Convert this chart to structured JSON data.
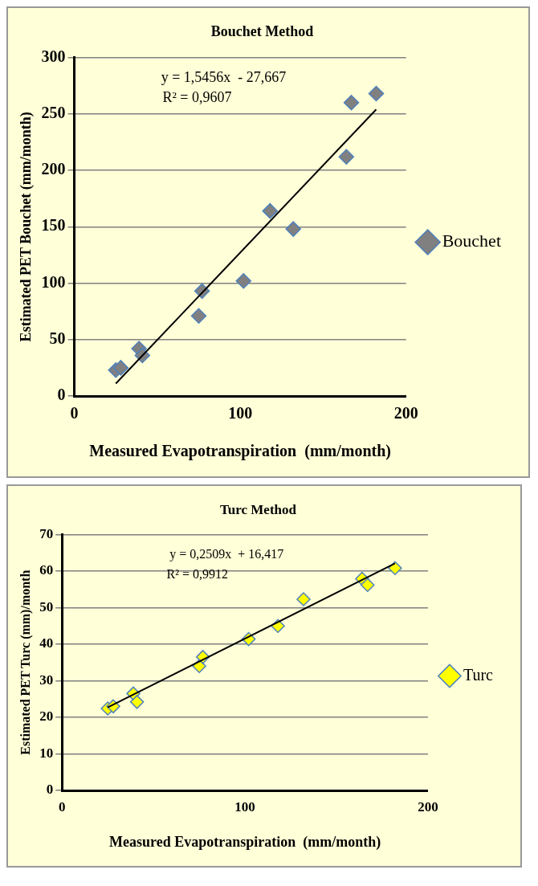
{
  "chart_data": [
    {
      "type": "scatter",
      "title": "Bouchet Method",
      "xlabel": "Measured Evapotranspiration  (mm/month)",
      "ylabel": "Estimated PET Bouchet (mm/month)",
      "xlim": [
        0,
        200
      ],
      "xticks": [
        0,
        100,
        200
      ],
      "ylim": [
        0,
        300
      ],
      "yticks": [
        0,
        50,
        100,
        150,
        200,
        250,
        300
      ],
      "grid": "y",
      "legend": "right",
      "marker": "diamond",
      "annotations": [
        "y = 1,5456x  - 27,667",
        "R² = 0,9607"
      ],
      "series": [
        {
          "name": "Bouchet",
          "color": "#808080",
          "x": [
            25,
            28,
            39,
            41,
            75,
            77,
            102,
            118,
            132,
            164,
            167,
            182
          ],
          "values": [
            23,
            25,
            42,
            36,
            71,
            93,
            102,
            164,
            148,
            212,
            260,
            268
          ]
        },
        {
          "type": "line",
          "color": "#000000",
          "marker": "none",
          "x": [
            25,
            182
          ],
          "values": [
            11,
            254
          ]
        }
      ]
    },
    {
      "type": "scatter",
      "title": "Turc Method",
      "xlabel": "Measured Evapotranspiration  (mm/month)",
      "ylabel": "Estimated PET Turc (mm)/month",
      "xlim": [
        0,
        200
      ],
      "xticks": [
        0,
        100,
        200
      ],
      "ylim": [
        0,
        70
      ],
      "yticks": [
        0,
        10,
        20,
        30,
        40,
        50,
        60,
        70
      ],
      "grid": "y",
      "legend": "right",
      "marker": "diamond",
      "annotations": [
        "y = 0,2509x  + 16,417",
        "R² = 0,9912"
      ],
      "series": [
        {
          "name": "Turc",
          "color": "#ffff00",
          "x": [
            25,
            28,
            39,
            41,
            75,
            77,
            102,
            118,
            132,
            164,
            167,
            182
          ],
          "values": [
            22.4,
            23,
            26.5,
            24.2,
            34,
            36.5,
            41.4,
            45,
            52.3,
            57.9,
            56.2,
            60.8
          ]
        },
        {
          "type": "line",
          "color": "#000000",
          "marker": "none",
          "x": [
            25,
            182
          ],
          "values": [
            22.7,
            62.1
          ]
        }
      ]
    }
  ]
}
